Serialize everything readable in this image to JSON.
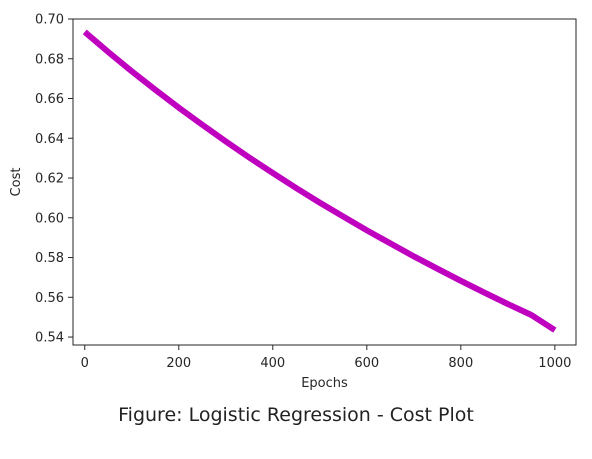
{
  "caption": "Figure: Logistic Regression - Cost Plot",
  "chart_data": {
    "type": "line",
    "title": "",
    "xlabel": "Epochs",
    "ylabel": "Cost",
    "xlim": [
      -25,
      1045
    ],
    "ylim": [
      0.536,
      0.7
    ],
    "xticks": [
      0,
      200,
      400,
      600,
      800,
      1000
    ],
    "yticks": [
      0.54,
      0.56,
      0.58,
      0.6,
      0.62,
      0.64,
      0.66,
      0.68,
      0.7
    ],
    "grid": false,
    "series": [
      {
        "color": "#bf00bf",
        "x": [
          0,
          50,
          100,
          150,
          200,
          250,
          300,
          350,
          400,
          450,
          500,
          550,
          600,
          650,
          700,
          750,
          800,
          850,
          900,
          950,
          1000
        ],
        "y": [
          0.6935,
          0.6834,
          0.6737,
          0.6644,
          0.6554,
          0.6468,
          0.6384,
          0.6303,
          0.6225,
          0.6149,
          0.6076,
          0.6006,
          0.5937,
          0.5871,
          0.5806,
          0.5744,
          0.5683,
          0.5624,
          0.5566,
          0.5511,
          0.5435
        ]
      }
    ]
  }
}
